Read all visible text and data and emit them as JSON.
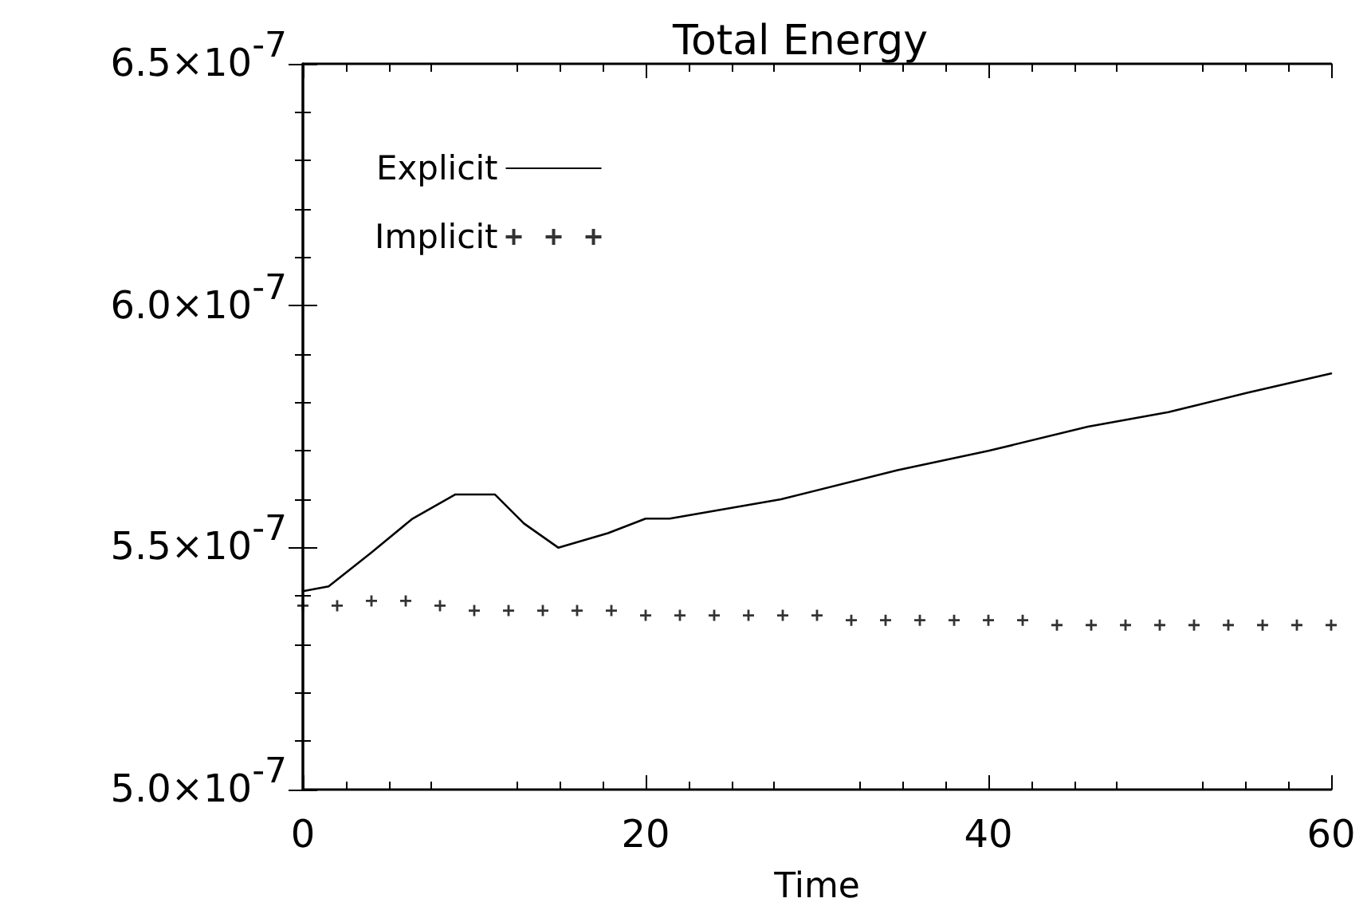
{
  "chart_data": {
    "type": "line",
    "title": "Total Energy",
    "xlabel": "Time",
    "xlim": [
      0,
      60
    ],
    "xticks": [
      0,
      20,
      40,
      60
    ],
    "ylim": [
      5e-07,
      6.5e-07
    ],
    "yticks": [
      {
        "value": 5e-07,
        "label": "5.0×10$^{-7}$"
      },
      {
        "value": 5.5e-07,
        "label": "5.5×10$^{-7}$"
      },
      {
        "value": 6e-07,
        "label": "6.0×10$^{-7}$"
      },
      {
        "value": 6.5e-07,
        "label": "6.5×10$^{-7}$"
      }
    ],
    "grid": false,
    "legend": "top left",
    "line_style": "solid",
    "series": [
      {
        "name": "Explicit",
        "marker": "none",
        "color": "#000000",
        "x": [
          0,
          1.5,
          4,
          6.4,
          8.9,
          11.2,
          12.9,
          14.9,
          17.8,
          20,
          21.4,
          27.9,
          34.7,
          40,
          45.8,
          50.5,
          55.1,
          60
        ],
        "values": [
          5.41e-07,
          5.42e-07,
          5.49e-07,
          5.56e-07,
          5.61e-07,
          5.61e-07,
          5.55e-07,
          5.5e-07,
          5.53e-07,
          5.56e-07,
          5.56e-07,
          5.6e-07,
          5.66e-07,
          5.7e-07,
          5.75e-07,
          5.78e-07,
          5.82e-07,
          5.86e-07
        ]
      },
      {
        "name": "Implicit",
        "type": "scatter",
        "marker": "cross",
        "color": "#000000",
        "x": [
          0,
          2,
          4,
          6,
          8,
          10,
          12,
          14,
          16,
          18,
          20,
          22,
          24,
          26,
          28,
          30,
          32,
          34,
          36,
          38,
          40,
          42,
          44,
          46,
          48,
          50,
          52,
          54,
          56,
          58,
          60
        ],
        "values": [
          5.38e-07,
          5.38e-07,
          5.39e-07,
          5.39e-07,
          5.38e-07,
          5.37e-07,
          5.37e-07,
          5.37e-07,
          5.37e-07,
          5.37e-07,
          5.36e-07,
          5.36e-07,
          5.36e-07,
          5.36e-07,
          5.36e-07,
          5.36e-07,
          5.35e-07,
          5.35e-07,
          5.35e-07,
          5.35e-07,
          5.35e-07,
          5.35e-07,
          5.34e-07,
          5.34e-07,
          5.34e-07,
          5.34e-07,
          5.34e-07,
          5.34e-07,
          5.34e-07,
          5.34e-07,
          5.34e-07
        ]
      }
    ]
  }
}
